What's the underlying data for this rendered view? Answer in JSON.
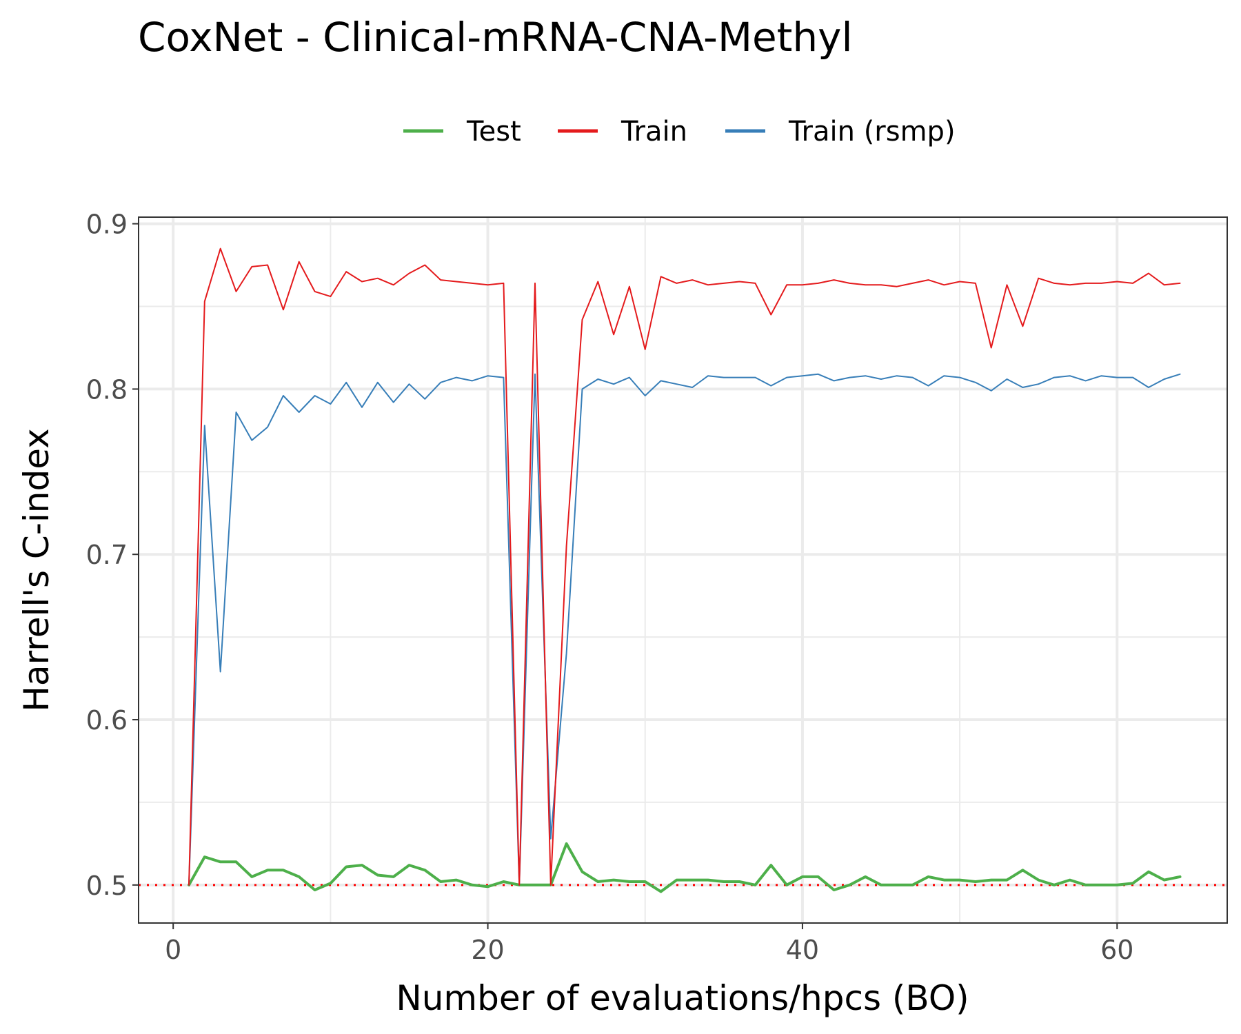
{
  "chart_data": {
    "type": "line",
    "title": "CoxNet - Clinical-mRNA-CNA-Methyl",
    "xlabel": "Number of evaluations/hpcs (BO)",
    "ylabel": "Harrell's C-index",
    "xlim": [
      -2.2,
      67
    ],
    "ylim": [
      0.477,
      0.904
    ],
    "x_ticks": [
      0,
      20,
      40,
      60
    ],
    "y_ticks": [
      0.5,
      0.6,
      0.7,
      0.8,
      0.9
    ],
    "x_tick_labels": [
      "0",
      "20",
      "40",
      "60"
    ],
    "y_tick_labels": [
      "0.5",
      "0.6",
      "0.7",
      "0.8",
      "0.9"
    ],
    "grid": true,
    "legend_position": "top",
    "reference_line": {
      "y": 0.5,
      "style": "dotted",
      "color": "#ff0000"
    },
    "x": [
      1,
      2,
      3,
      4,
      5,
      6,
      7,
      8,
      9,
      10,
      11,
      12,
      13,
      14,
      15,
      16,
      17,
      18,
      19,
      20,
      21,
      22,
      23,
      24,
      25,
      26,
      27,
      28,
      29,
      30,
      31,
      32,
      33,
      34,
      35,
      36,
      37,
      38,
      39,
      40,
      41,
      42,
      43,
      44,
      45,
      46,
      47,
      48,
      49,
      50,
      51,
      52,
      53,
      54,
      55,
      56,
      57,
      58,
      59,
      60,
      61,
      62,
      63,
      64
    ],
    "series": [
      {
        "name": "Test",
        "color": "#4daf4a",
        "width": 4,
        "values": [
          0.5,
          0.517,
          0.514,
          0.514,
          0.505,
          0.509,
          0.509,
          0.505,
          0.497,
          0.501,
          0.511,
          0.512,
          0.506,
          0.505,
          0.512,
          0.509,
          0.502,
          0.503,
          0.5,
          0.499,
          0.502,
          0.5,
          0.5,
          0.5,
          0.525,
          0.508,
          0.502,
          0.503,
          0.502,
          0.502,
          0.496,
          0.503,
          0.503,
          0.503,
          0.502,
          0.502,
          0.5,
          0.512,
          0.5,
          0.505,
          0.505,
          0.497,
          0.5,
          0.505,
          0.5,
          0.5,
          0.5,
          0.505,
          0.503,
          0.503,
          0.502,
          0.503,
          0.503,
          0.509,
          0.503,
          0.5,
          0.503,
          0.5,
          0.5,
          0.5,
          0.501,
          0.508,
          0.503,
          0.505
        ]
      },
      {
        "name": "Train",
        "color": "#e41a1c",
        "width": 2,
        "values": [
          0.5,
          0.853,
          0.885,
          0.859,
          0.874,
          0.875,
          0.848,
          0.877,
          0.859,
          0.856,
          0.871,
          0.865,
          0.867,
          0.863,
          0.87,
          0.875,
          0.866,
          0.865,
          0.864,
          0.863,
          0.864,
          0.5,
          0.864,
          0.5,
          0.705,
          0.842,
          0.865,
          0.833,
          0.862,
          0.824,
          0.868,
          0.864,
          0.866,
          0.863,
          0.864,
          0.865,
          0.864,
          0.845,
          0.863,
          0.863,
          0.864,
          0.866,
          0.864,
          0.863,
          0.863,
          0.862,
          0.864,
          0.866,
          0.863,
          0.865,
          0.864,
          0.825,
          0.863,
          0.838,
          0.867,
          0.864,
          0.863,
          0.864,
          0.864,
          0.865,
          0.864,
          0.87,
          0.863,
          0.864
        ]
      },
      {
        "name": "Train (rsmp)",
        "color": "#377eb8",
        "width": 2,
        "values": [
          0.5,
          0.778,
          0.629,
          0.786,
          0.769,
          0.777,
          0.796,
          0.786,
          0.796,
          0.791,
          0.804,
          0.789,
          0.804,
          0.792,
          0.803,
          0.794,
          0.804,
          0.807,
          0.805,
          0.808,
          0.807,
          0.5,
          0.809,
          0.528,
          0.64,
          0.8,
          0.806,
          0.803,
          0.807,
          0.796,
          0.805,
          0.803,
          0.801,
          0.808,
          0.807,
          0.807,
          0.807,
          0.802,
          0.807,
          0.808,
          0.809,
          0.805,
          0.807,
          0.808,
          0.806,
          0.808,
          0.807,
          0.802,
          0.808,
          0.807,
          0.804,
          0.799,
          0.806,
          0.801,
          0.803,
          0.807,
          0.808,
          0.805,
          0.808,
          0.807,
          0.807,
          0.801,
          0.806,
          0.809
        ]
      }
    ]
  }
}
